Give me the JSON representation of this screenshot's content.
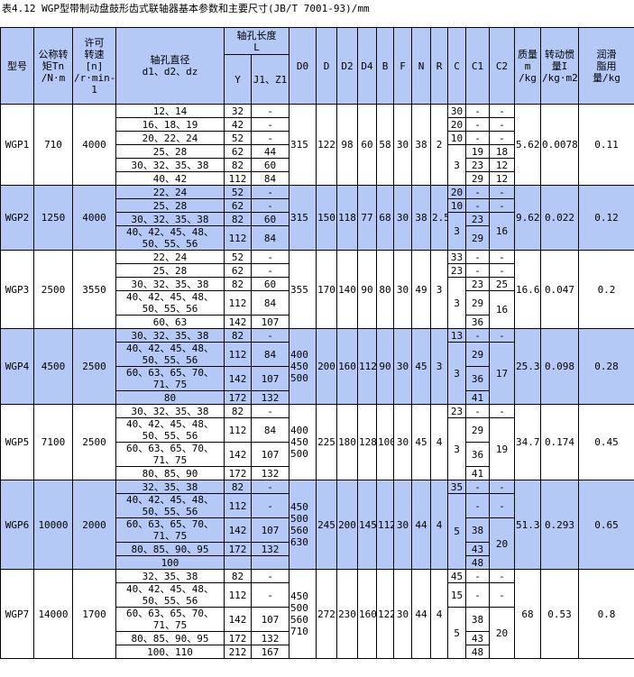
{
  "title": "表4.12 WGP型带制动盘鼓形齿式联轴器基本参数和主要尺寸(JB/T 7001-93)/mm",
  "colors": {
    "header_bg": "#b4c9f5",
    "alt_row_bg": "#b4c9f5",
    "border": "#000000"
  },
  "headers": {
    "model": "型号",
    "torque": "公称转\n矩Tn\n/N·m",
    "speed": "许可\n转速\n[n]\n/r·min-\n1",
    "bore_dia": "轴孔直径\nd1、d2、dz",
    "bore_len": "轴孔长度\nL",
    "y": "Y",
    "j": "J1、Z1",
    "d0": "D0",
    "d": "D",
    "d2": "D2",
    "d4": "D4",
    "b": "B",
    "f": "F",
    "n": "N",
    "r": "R",
    "c": "C",
    "c1": "C1",
    "c2": "C2",
    "mass": "质量\nm\n/kg",
    "inertia": "转动惯\n量I\n/kg·m2",
    "grease": "润滑\n脂用\n量/kg"
  },
  "groups": [
    {
      "model": "WGP1",
      "torque": "710",
      "speed": "4000",
      "d0": "315",
      "d": "122",
      "d2": "98",
      "d4": "60",
      "b": "58",
      "f": "30",
      "n": "38",
      "r": "2",
      "mass": "5.62",
      "inertia": "0.0078",
      "grease": "0.11",
      "blue": false,
      "rows": [
        {
          "dia": "12、14",
          "y": "32",
          "j": "-"
        },
        {
          "dia": "16、18、19",
          "y": "42",
          "j": "-"
        },
        {
          "dia": "20、22、24",
          "y": "52",
          "j": "-"
        },
        {
          "dia": "25、28",
          "y": "62",
          "j": "44"
        },
        {
          "dia": "30、32、35、38",
          "y": "82",
          "j": "60"
        },
        {
          "dia": "40、42",
          "y": "112",
          "j": "84"
        }
      ],
      "c": [
        {
          "v": "30",
          "span": 1
        },
        {
          "v": "20",
          "span": 1
        },
        {
          "v": "10",
          "span": 1
        },
        {
          "v": "3",
          "span": 3
        }
      ],
      "c1": [
        {
          "v": "-",
          "span": 1
        },
        {
          "v": "-",
          "span": 1
        },
        {
          "v": "-",
          "span": 1
        },
        {
          "v": "19",
          "span": 1
        },
        {
          "v": "23",
          "span": 1
        },
        {
          "v": "29",
          "span": 1
        }
      ],
      "c2": [
        {
          "v": "-",
          "span": 1
        },
        {
          "v": "-",
          "span": 1
        },
        {
          "v": "-",
          "span": 1
        },
        {
          "v": "18",
          "span": 1
        },
        {
          "v": "12",
          "span": 1
        },
        {
          "v": "12",
          "span": 1
        }
      ]
    },
    {
      "model": "WGP2",
      "torque": "1250",
      "speed": "4000",
      "d0": "315",
      "d": "150",
      "d2": "118",
      "d4": "77",
      "b": "68",
      "f": "30",
      "n": "38",
      "r": "2.5",
      "mass": "9.62",
      "inertia": "0.022",
      "grease": "0.12",
      "blue": true,
      "rows": [
        {
          "dia": "22、24",
          "y": "52",
          "j": "-"
        },
        {
          "dia": "25、28",
          "y": "62",
          "j": "-"
        },
        {
          "dia": "30、32、35、38",
          "y": "82",
          "j": "60"
        },
        {
          "dia": "40、42、45、48、\n50、55、56",
          "y": "112",
          "j": "84"
        }
      ],
      "c": [
        {
          "v": "20",
          "span": 1
        },
        {
          "v": "10",
          "span": 1
        },
        {
          "v": "3",
          "span": 2
        }
      ],
      "c1": [
        {
          "v": "-",
          "span": 1
        },
        {
          "v": "-",
          "span": 1
        },
        {
          "v": "23",
          "span": 1
        },
        {
          "v": "29",
          "span": 1
        }
      ],
      "c2": [
        {
          "v": "-",
          "span": 1
        },
        {
          "v": "-",
          "span": 1
        },
        {
          "v": "16",
          "span": 2
        }
      ]
    },
    {
      "model": "WGP3",
      "torque": "2500",
      "speed": "3550",
      "d0": "355",
      "d": "170",
      "d2": "140",
      "d4": "90",
      "b": "80",
      "f": "30",
      "n": "49",
      "r": "3",
      "mass": "16.6",
      "inertia": "0.047",
      "grease": "0.2",
      "blue": false,
      "rows": [
        {
          "dia": "22、24",
          "y": "52",
          "j": "-"
        },
        {
          "dia": "25、28",
          "y": "62",
          "j": "-"
        },
        {
          "dia": "30、32、35、38",
          "y": "82",
          "j": "60"
        },
        {
          "dia": "40、42、45、48、\n50、55、56",
          "y": "112",
          "j": "84"
        },
        {
          "dia": "60、63",
          "y": "142",
          "j": "107"
        }
      ],
      "c": [
        {
          "v": "33",
          "span": 1
        },
        {
          "v": "23",
          "span": 1
        },
        {
          "v": "3",
          "span": 3
        }
      ],
      "c1": [
        {
          "v": "-",
          "span": 1
        },
        {
          "v": "-",
          "span": 1
        },
        {
          "v": "23",
          "span": 1
        },
        {
          "v": "29",
          "span": 1
        },
        {
          "v": "36",
          "span": 1
        }
      ],
      "c2": [
        {
          "v": "-",
          "span": 1
        },
        {
          "v": "-",
          "span": 1
        },
        {
          "v": "25",
          "span": 1
        },
        {
          "v": "16",
          "span": 2
        }
      ]
    },
    {
      "model": "WGP4",
      "torque": "4500",
      "speed": "2500",
      "d0": "400\n450\n500",
      "d": "200",
      "d2": "160",
      "d4": "112",
      "b": "90",
      "f": "30",
      "n": "45",
      "r": "3",
      "mass": "25.3",
      "inertia": "0.098",
      "grease": "0.28",
      "blue": true,
      "rows": [
        {
          "dia": "30、32、35、38",
          "y": "82",
          "j": "-"
        },
        {
          "dia": "40、42、45、48、\n50、55、56",
          "y": "112",
          "j": "84"
        },
        {
          "dia": "60、63、65、70、\n71、75",
          "y": "142",
          "j": "107"
        },
        {
          "dia": "80",
          "y": "172",
          "j": "132"
        }
      ],
      "c": [
        {
          "v": "13",
          "span": 1
        },
        {
          "v": "3",
          "span": 3
        }
      ],
      "c1": [
        {
          "v": "-",
          "span": 1
        },
        {
          "v": "29",
          "span": 1
        },
        {
          "v": "36",
          "span": 1
        },
        {
          "v": "41",
          "span": 1
        }
      ],
      "c2": [
        {
          "v": "-",
          "span": 1
        },
        {
          "v": "17",
          "span": 3
        }
      ]
    },
    {
      "model": "WGP5",
      "torque": "7100",
      "speed": "2500",
      "d0": "400\n450\n500",
      "d": "225",
      "d2": "180",
      "d4": "128",
      "b": "100",
      "f": "30",
      "n": "45",
      "r": "4",
      "mass": "34.7",
      "inertia": "0.174",
      "grease": "0.45",
      "blue": false,
      "rows": [
        {
          "dia": "30、32、35、38",
          "y": "82",
          "j": "-"
        },
        {
          "dia": "40、42、45、48、\n50、55、56",
          "y": "112",
          "j": "84"
        },
        {
          "dia": "60、63、65、70、\n71、75",
          "y": "142",
          "j": "107"
        },
        {
          "dia": "80、85、90",
          "y": "172",
          "j": "132"
        }
      ],
      "c": [
        {
          "v": "23",
          "span": 1
        },
        {
          "v": "3",
          "span": 3
        }
      ],
      "c1": [
        {
          "v": "-",
          "span": 1
        },
        {
          "v": "29",
          "span": 1
        },
        {
          "v": "36",
          "span": 1
        },
        {
          "v": "41",
          "span": 1
        }
      ],
      "c2": [
        {
          "v": "-",
          "span": 1
        },
        {
          "v": "19",
          "span": 3
        }
      ]
    },
    {
      "model": "WGP6",
      "torque": "10000",
      "speed": "2000",
      "d0": "450\n500\n560\n630",
      "d": "245",
      "d2": "200",
      "d4": "145",
      "b": "112",
      "f": "30",
      "n": "44",
      "r": "4",
      "mass": "51.3",
      "inertia": "0.293",
      "grease": "0.65",
      "blue": true,
      "rows": [
        {
          "dia": "32、35、38",
          "y": "82",
          "j": "-"
        },
        {
          "dia": "40、42、45、48、\n50、55、56",
          "y": "112",
          "j": "-"
        },
        {
          "dia": "60、63、65、70、\n71、75",
          "y": "142",
          "j": "107"
        },
        {
          "dia": "80、85、90、95",
          "y": "172",
          "j": "132"
        },
        {
          "dia": "100",
          "y": "",
          "j": ""
        }
      ],
      "c": [
        {
          "v": "35",
          "span": 1
        },
        {
          "v": "5",
          "span": 4
        }
      ],
      "c1": [
        {
          "v": "-",
          "span": 1
        },
        {
          "v": "-",
          "span": 1
        },
        {
          "v": "38",
          "span": 1
        },
        {
          "v": "43",
          "span": 1
        },
        {
          "v": "48",
          "span": 1
        }
      ],
      "c2": [
        {
          "v": "-",
          "span": 1
        },
        {
          "v": "-",
          "span": 1
        },
        {
          "v": "20",
          "span": 3
        }
      ]
    },
    {
      "model": "WGP7",
      "torque": "14000",
      "speed": "1700",
      "d0": "450\n500\n560\n710",
      "d": "272",
      "d2": "230",
      "d4": "160",
      "b": "122",
      "f": "30",
      "n": "44",
      "r": "4",
      "mass": "68",
      "inertia": "0.53",
      "grease": "0.8",
      "blue": false,
      "rows": [
        {
          "dia": "32、35、38",
          "y": "82",
          "j": "-"
        },
        {
          "dia": "40、42、45、48、\n50、55、56",
          "y": "112",
          "j": "-"
        },
        {
          "dia": "60、63、65、70、\n71、75",
          "y": "142",
          "j": "107"
        },
        {
          "dia": "80、85、90、95",
          "y": "172",
          "j": "132"
        },
        {
          "dia": "100、110",
          "y": "212",
          "j": "167"
        }
      ],
      "c": [
        {
          "v": "45",
          "span": 1
        },
        {
          "v": "15",
          "span": 1
        },
        {
          "v": "5",
          "span": 3
        }
      ],
      "c1": [
        {
          "v": "-",
          "span": 1
        },
        {
          "v": "-",
          "span": 1
        },
        {
          "v": "38",
          "span": 1
        },
        {
          "v": "43",
          "span": 1
        },
        {
          "v": "48",
          "span": 1
        }
      ],
      "c2": [
        {
          "v": "-",
          "span": 1
        },
        {
          "v": "-",
          "span": 1
        },
        {
          "v": "20",
          "span": 3
        }
      ]
    }
  ]
}
